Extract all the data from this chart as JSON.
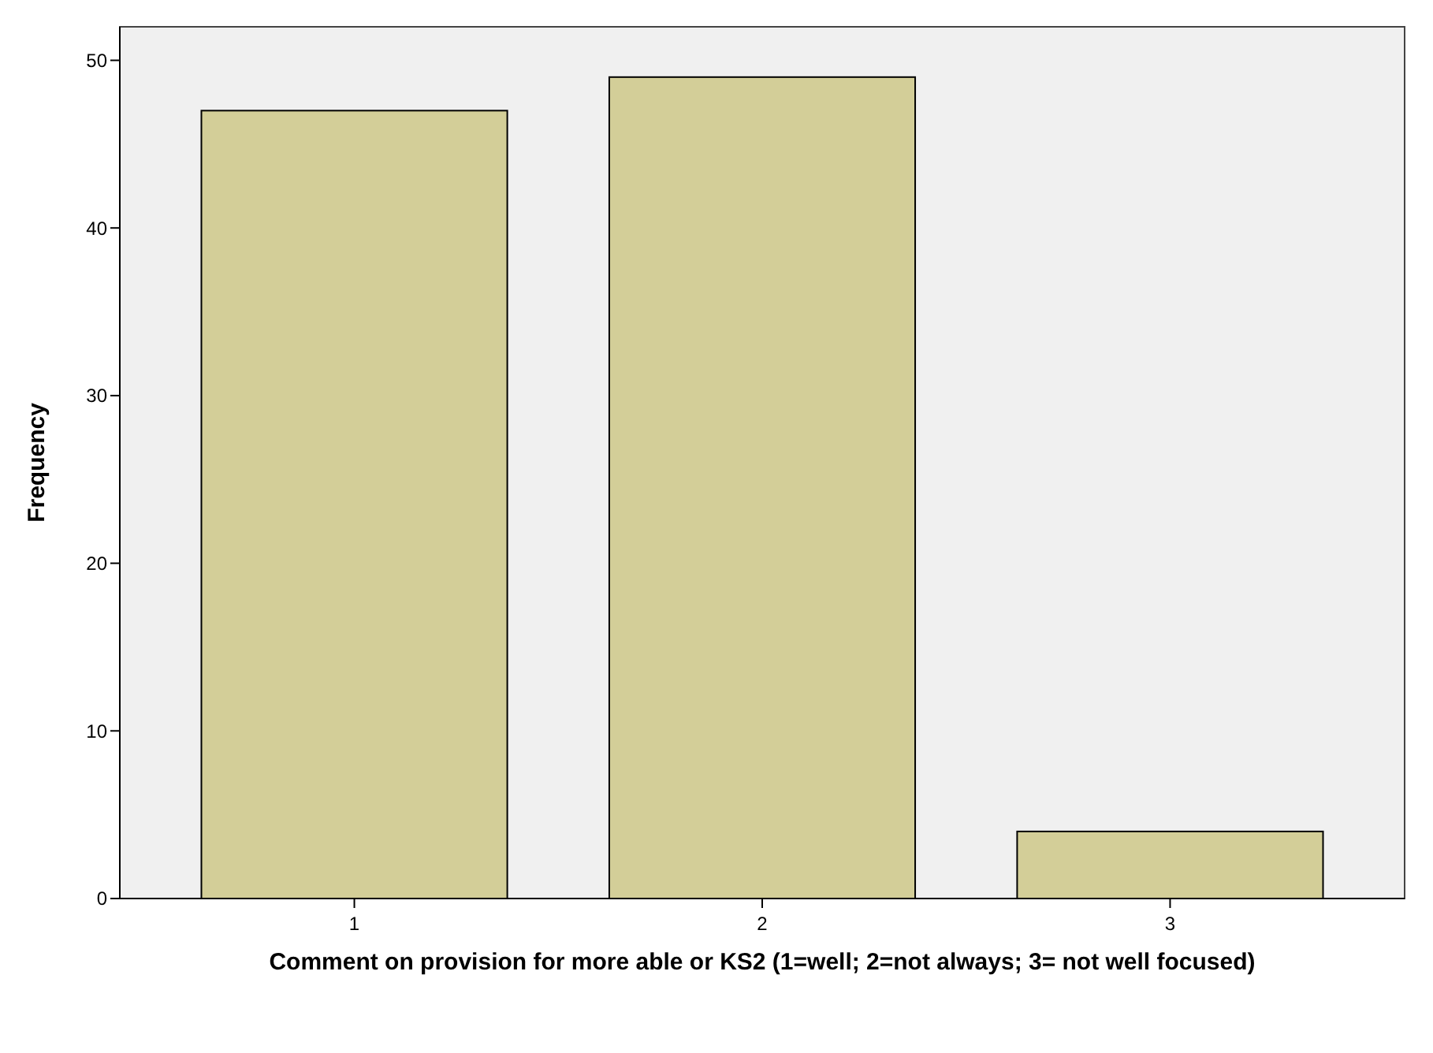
{
  "chart_data": {
    "type": "bar",
    "xlabel": "Comment on provision for more able or KS2 (1=well; 2=not always; 3= not well focused)",
    "ylabel": "Frequency",
    "categories": [
      "1",
      "2",
      "3"
    ],
    "values": [
      47,
      49,
      4
    ],
    "color": "#d3ce98",
    "ylim": [
      0,
      52
    ],
    "yticks": [
      0,
      10,
      20,
      30,
      40,
      50
    ],
    "grid": false
  }
}
